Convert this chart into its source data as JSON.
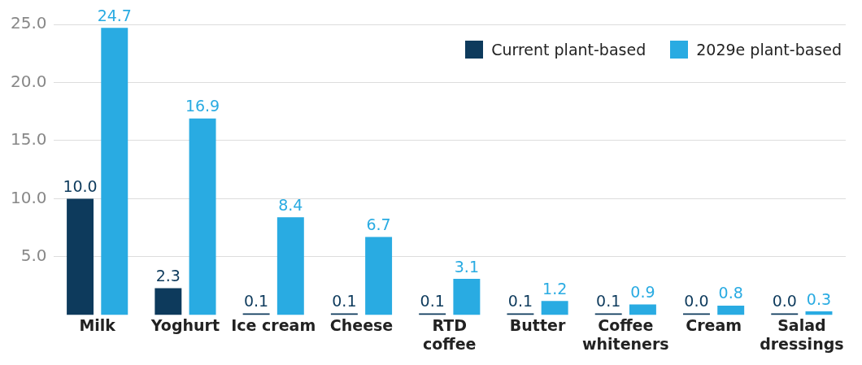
{
  "chart_data": {
    "type": "bar",
    "categories": [
      "Milk",
      "Yoghurt",
      "Ice cream",
      "Cheese",
      "RTD coffee",
      "Butter",
      "Coffee whiteners",
      "Cream",
      "Salad dressings"
    ],
    "series": [
      {
        "name": "Current plant-based",
        "color": "#0d3a5c",
        "values": [
          10.0,
          2.3,
          0.1,
          0.1,
          0.1,
          0.1,
          0.1,
          0.0,
          0.0
        ],
        "value_labels": [
          "10.0",
          "2.3",
          "0.1",
          "0.1",
          "0.1",
          "0.1",
          "0.1",
          "0.0",
          "0.0"
        ]
      },
      {
        "name": "2029e plant-based",
        "color": "#29abe2",
        "values": [
          24.7,
          16.9,
          8.4,
          6.7,
          3.1,
          1.2,
          0.9,
          0.8,
          0.3
        ],
        "value_labels": [
          "24.7",
          "16.9",
          "8.4",
          "6.7",
          "3.1",
          "1.2",
          "0.9",
          "0.8",
          "0.3"
        ]
      }
    ],
    "ylim": [
      0,
      25
    ],
    "yticks": [
      {
        "value": 5,
        "label": "5.0"
      },
      {
        "value": 10,
        "label": "10.0"
      },
      {
        "value": 15,
        "label": "15.0"
      },
      {
        "value": 20,
        "label": "20.0"
      },
      {
        "value": 25,
        "label": "25.0"
      }
    ],
    "grid": "y",
    "legend": "top right"
  }
}
